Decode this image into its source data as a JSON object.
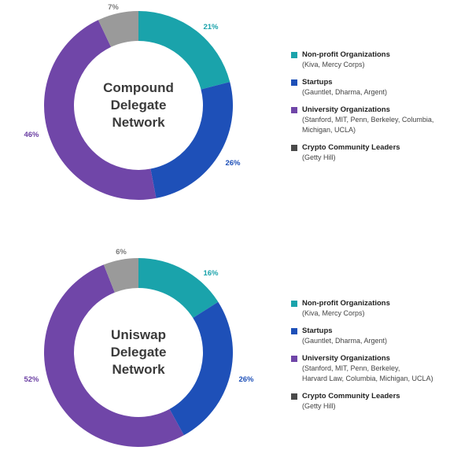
{
  "chart_data": [
    {
      "type": "pie",
      "title": "Compound Delegate Network",
      "title_lines": [
        "Compound",
        "Delegate",
        "Network"
      ],
      "categories": [
        "Non-profit Organizations",
        "Startups",
        "University Organizations",
        "Crypto Community Leaders"
      ],
      "values": [
        21,
        26,
        46,
        7
      ],
      "value_labels": [
        "21%",
        "26%",
        "46%",
        "7%"
      ],
      "legend_details": [
        "(Kiva, Mercy Corps)",
        "(Gauntlet, Dharma, Argent)",
        "(Stanford, MIT, Penn, Berkeley, Columbia, Michigan, UCLA)",
        "(Getty Hill)"
      ],
      "legend_detail_lines": [
        [
          "(Kiva, Mercy Corps)"
        ],
        [
          "(Gauntlet, Dharma, Argent)"
        ],
        [
          "(Stanford, MIT, Penn, Berkeley, Columbia,",
          "Michigan, UCLA)"
        ],
        [
          "(Getty Hill)"
        ]
      ],
      "legend_placement": "right",
      "donut": true
    },
    {
      "type": "pie",
      "title": "Uniswap Delegate Network",
      "title_lines": [
        "Uniswap",
        "Delegate",
        "Network"
      ],
      "categories": [
        "Non-profit Organizations",
        "Startups",
        "University Organizations",
        "Crypto Community Leaders"
      ],
      "values": [
        16,
        26,
        52,
        6
      ],
      "value_labels": [
        "16%",
        "26%",
        "52%",
        "6%"
      ],
      "legend_details": [
        "(Kiva, Mercy Corps)",
        "(Gauntlet, Dharma, Argent)",
        "(Stanford, MIT, Penn, Berkeley, Harvard Law, Columbia, Michigan, UCLA)",
        "(Getty Hill)"
      ],
      "legend_detail_lines": [
        [
          "(Kiva, Mercy Corps)"
        ],
        [
          "(Gauntlet, Dharma, Argent)"
        ],
        [
          "(Stanford, MIT, Penn, Berkeley,",
          "Harvard Law, Columbia, Michigan, UCLA)"
        ],
        [
          "(Getty Hill)"
        ]
      ],
      "legend_placement": "right",
      "donut": true
    }
  ],
  "colors": {
    "non_profit": "#1aa3ab",
    "startups": "#1e50b8",
    "university": "#7046a8",
    "crypto_leaders": "#9a9a9a",
    "swatch_crypto_leaders": "#4a4a4a",
    "label_non_profit": "#1aa3ab",
    "label_startups": "#1e50b8",
    "label_university": "#6b3fa3",
    "label_crypto_leaders": "#7a7a7a"
  }
}
